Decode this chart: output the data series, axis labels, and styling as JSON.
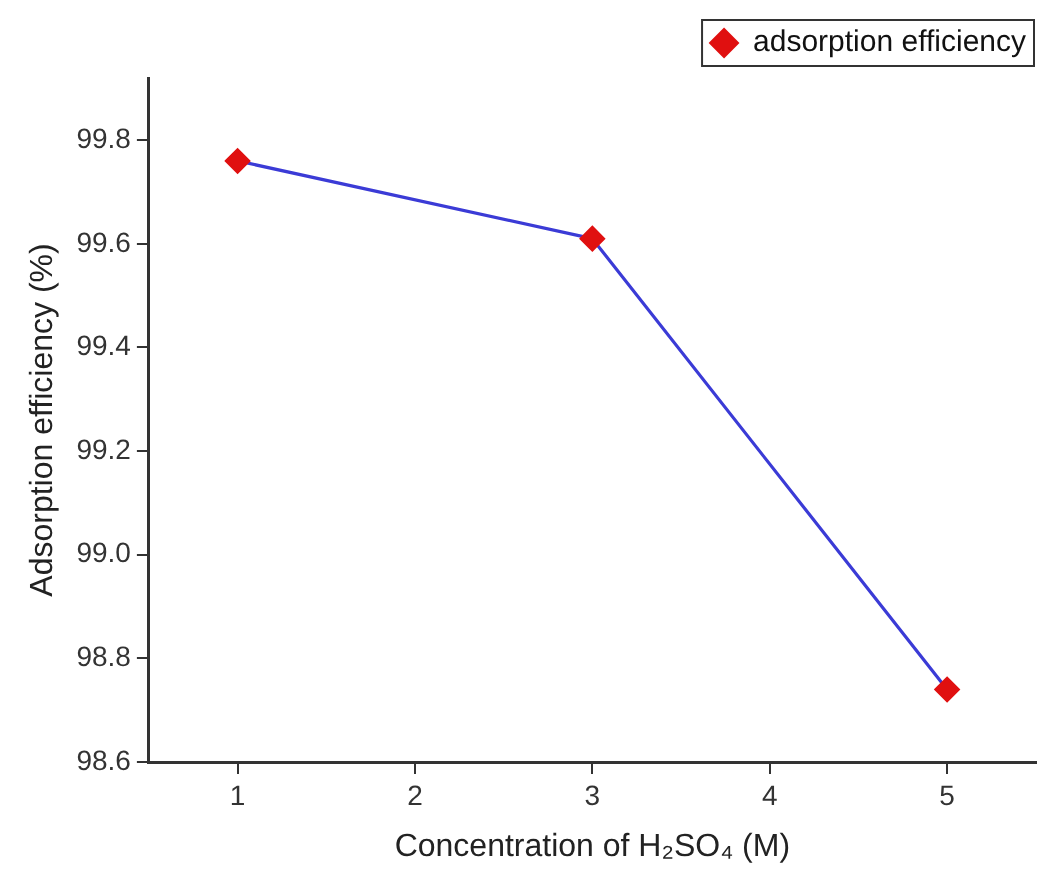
{
  "chart_data": {
    "type": "line",
    "xlabel": "Concentration of H₂SO₄ (M)",
    "ylabel": "Adsorption efficiency (%)",
    "x": [
      1,
      3,
      5
    ],
    "series": [
      {
        "name": "adsorption efficiency",
        "color": "#3b3bd6",
        "colors": [
          "#e01010",
          "#e01010",
          "#e01010"
        ],
        "values": [
          99.76,
          99.61,
          98.74
        ]
      }
    ],
    "xlim": [
      0.5,
      5.5
    ],
    "xticks": [
      1,
      2,
      3,
      4,
      5
    ],
    "ylim": [
      98.6,
      99.92
    ],
    "yticks": [
      98.6,
      98.8,
      {
        "value": 99,
        "label": "99.0"
      },
      99.2,
      99.4,
      99.6,
      99.8
    ],
    "grid": false,
    "legend": "top right",
    "marker": "diamond",
    "line_style": "solid"
  }
}
